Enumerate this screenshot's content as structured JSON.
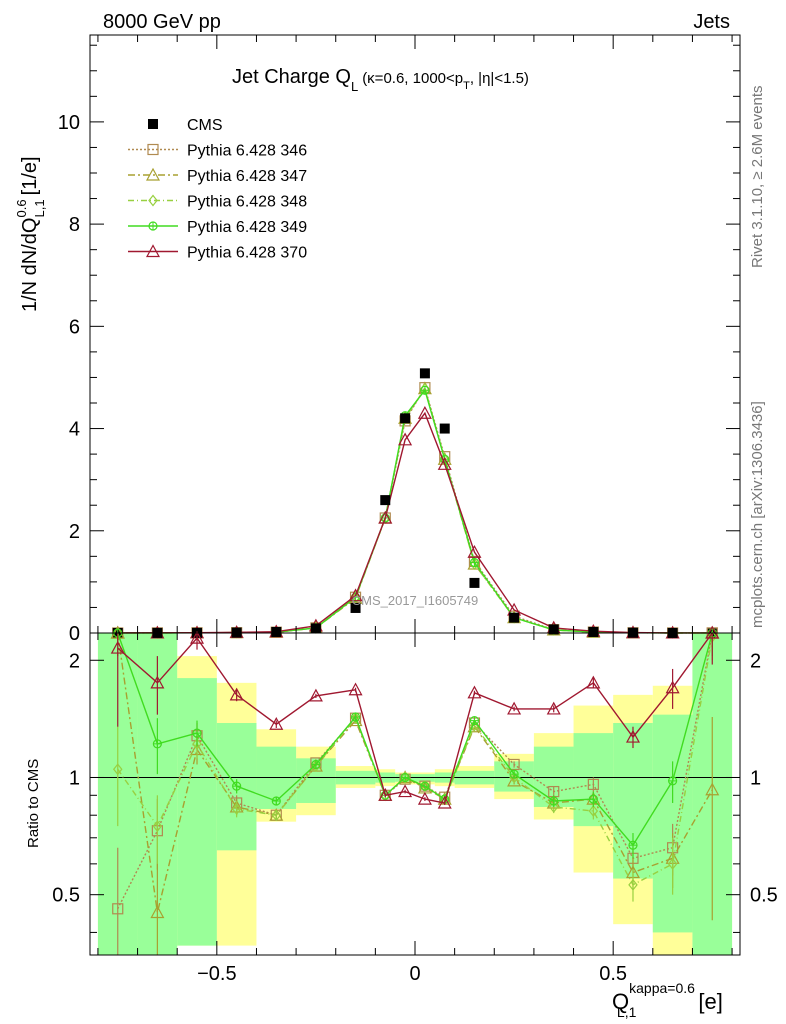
{
  "header": {
    "left": "8000 GeV pp",
    "right": "Jets"
  },
  "side_labels": {
    "top": "Rivet 3.1.10, ≥ 2.6M events",
    "bottom": "mcplots.cern.ch [arXiv:1306.3436]"
  },
  "watermark": "CMS_2017_I1605749",
  "chart_data": {
    "type": "line",
    "title_main": "Jet Charge Q",
    "title_sub": "L",
    "title_rest": "(κ=0.6, 1000<p",
    "title_sub2": "T",
    "title_end": ", |η|<1.5)",
    "ylabel": "1/N dN/dQ",
    "ylabel_sup": "0.6",
    "ylabel_sub": "L,1",
    "ylabel_unit": "[1/e]",
    "ratio_ylabel": "Ratio to CMS",
    "xlabel_main": "Q",
    "xlabel_sup": "kappa=0.6",
    "xlabel_sub": "L,1",
    "xlabel_unit": "[e]",
    "xlim": [
      -0.82,
      0.82
    ],
    "ylim_main": [
      0,
      11.7
    ],
    "ylim_ratio": "log 0.35 to 2.35",
    "x_ticks": [
      {
        "v": -0.5,
        "label": "−0.5"
      },
      {
        "v": 0,
        "label": "0"
      },
      {
        "v": 0.5,
        "label": "0.5"
      }
    ],
    "y_ticks_main": [
      {
        "v": 0,
        "label": "0"
      },
      {
        "v": 2,
        "label": "2"
      },
      {
        "v": 4,
        "label": "4"
      },
      {
        "v": 6,
        "label": "6"
      },
      {
        "v": 8,
        "label": "8"
      },
      {
        "v": 10,
        "label": "10"
      }
    ],
    "y_ticks_ratio": [
      {
        "v": 0.5,
        "label": "0.5"
      },
      {
        "v": 1,
        "label": "1"
      },
      {
        "v": 2,
        "label": "2"
      }
    ],
    "data": {
      "name": "CMS",
      "x": [
        -0.75,
        -0.65,
        -0.55,
        -0.45,
        -0.35,
        -0.25,
        -0.15,
        -0.075,
        -0.025,
        0.025,
        0.075,
        0.15,
        0.25,
        0.35,
        0.45,
        0.55,
        0.65,
        0.75
      ],
      "y": [
        0.0005,
        0.002,
        0.003,
        0.008,
        0.02,
        0.09,
        0.49,
        2.6,
        4.2,
        5.08,
        4.0,
        0.98,
        0.3,
        0.07,
        0.02,
        0.006,
        0.001,
        0.0003
      ]
    },
    "bands": [
      {
        "x0": -0.8,
        "x1": -0.7,
        "y_lo": 0.35,
        "y_hi": 2.35,
        "g_lo": 0.35,
        "g_hi": 2.35
      },
      {
        "x0": -0.7,
        "x1": -0.6,
        "y_lo": 0.35,
        "y_hi": 2.35,
        "g_lo": 0.35,
        "g_hi": 2.35
      },
      {
        "x0": -0.6,
        "x1": -0.5,
        "y_lo": 0.37,
        "y_hi": 2.05,
        "g_lo": 0.37,
        "g_hi": 1.8
      },
      {
        "x0": -0.5,
        "x1": -0.4,
        "y_lo": 0.37,
        "y_hi": 1.75,
        "g_lo": 0.65,
        "g_hi": 1.38
      },
      {
        "x0": -0.4,
        "x1": -0.3,
        "y_lo": 0.77,
        "y_hi": 1.33,
        "g_lo": 0.83,
        "g_hi": 1.2
      },
      {
        "x0": -0.3,
        "x1": -0.2,
        "y_lo": 0.8,
        "y_hi": 1.2,
        "g_lo": 0.86,
        "g_hi": 1.12
      },
      {
        "x0": -0.2,
        "x1": -0.1,
        "y_lo": 0.94,
        "y_hi": 1.07,
        "g_lo": 0.96,
        "g_hi": 1.04
      },
      {
        "x0": -0.1,
        "x1": -0.05,
        "y_lo": 0.95,
        "y_hi": 1.05,
        "g_lo": 0.97,
        "g_hi": 1.03
      },
      {
        "x0": -0.05,
        "x1": 0.0,
        "y_lo": 0.96,
        "y_hi": 1.03,
        "g_lo": 0.975,
        "g_hi": 1.02
      },
      {
        "x0": 0.0,
        "x1": 0.05,
        "y_lo": 0.96,
        "y_hi": 1.03,
        "g_lo": 0.975,
        "g_hi": 1.02
      },
      {
        "x0": 0.05,
        "x1": 0.1,
        "y_lo": 0.95,
        "y_hi": 1.05,
        "g_lo": 0.97,
        "g_hi": 1.03
      },
      {
        "x0": 0.1,
        "x1": 0.2,
        "y_lo": 0.94,
        "y_hi": 1.07,
        "g_lo": 0.96,
        "g_hi": 1.04
      },
      {
        "x0": 0.2,
        "x1": 0.3,
        "y_lo": 0.88,
        "y_hi": 1.15,
        "g_lo": 0.92,
        "g_hi": 1.1
      },
      {
        "x0": 0.3,
        "x1": 0.4,
        "y_lo": 0.78,
        "y_hi": 1.3,
        "g_lo": 0.84,
        "g_hi": 1.2
      },
      {
        "x0": 0.4,
        "x1": 0.5,
        "y_lo": 0.57,
        "y_hi": 1.53,
        "g_lo": 0.75,
        "g_hi": 1.3
      },
      {
        "x0": 0.5,
        "x1": 0.6,
        "y_lo": 0.42,
        "y_hi": 1.63,
        "g_lo": 0.55,
        "g_hi": 1.38
      },
      {
        "x0": 0.6,
        "x1": 0.7,
        "y_lo": 0.35,
        "y_hi": 1.72,
        "g_lo": 0.4,
        "g_hi": 1.45
      },
      {
        "x0": 0.7,
        "x1": 0.8,
        "y_lo": 0.35,
        "y_hi": 2.35,
        "g_lo": 0.35,
        "g_hi": 2.35
      }
    ],
    "series": [
      {
        "name": "Pythia 6.428 346",
        "color": "#b08a50",
        "dash": "2,2",
        "marker": "square",
        "y": [
          0.0005,
          0.002,
          0.004,
          0.007,
          0.016,
          0.1,
          0.7,
          2.25,
          4.15,
          4.8,
          3.45,
          1.4,
          0.33,
          0.065,
          0.019,
          0.004,
          0.001,
          0.001
        ],
        "ratio": [
          0.46,
          0.73,
          1.28,
          0.86,
          0.8,
          1.09,
          1.42,
          0.9,
          0.99,
          0.95,
          0.89,
          1.38,
          1.08,
          0.92,
          0.96,
          0.62,
          0.66,
          2.4
        ],
        "ratio_err": [
          0.2,
          0.15,
          0.1,
          0.04,
          0.02,
          0.02,
          0.02,
          0.01,
          0.01,
          0.01,
          0.01,
          0.02,
          0.02,
          0.03,
          0.04,
          0.05,
          0.1,
          0.3
        ]
      },
      {
        "name": "Pythia 6.428 347",
        "color": "#a8a030",
        "dash": "7,3,2,3",
        "marker": "triangle",
        "y": [
          0.0005,
          0.002,
          0.004,
          0.007,
          0.016,
          0.1,
          0.68,
          2.25,
          4.2,
          4.78,
          3.4,
          1.35,
          0.3,
          0.06,
          0.017,
          0.004,
          0.001,
          0.0003
        ],
        "ratio": [
          2.35,
          0.45,
          1.18,
          0.84,
          0.8,
          1.07,
          1.4,
          0.9,
          1.0,
          0.94,
          0.88,
          1.35,
          0.98,
          0.86,
          0.88,
          0.57,
          0.62,
          0.93
        ],
        "ratio_err": [
          0.3,
          0.15,
          0.1,
          0.04,
          0.02,
          0.02,
          0.02,
          0.01,
          0.01,
          0.01,
          0.01,
          0.02,
          0.02,
          0.03,
          0.04,
          0.05,
          0.1,
          0.5
        ]
      },
      {
        "name": "Pythia 6.428 348",
        "color": "#98d040",
        "dash": "6,3,1,3",
        "marker": "diamond",
        "y": [
          0.0005,
          0.002,
          0.004,
          0.007,
          0.016,
          0.1,
          0.7,
          2.25,
          4.2,
          4.78,
          3.4,
          1.35,
          0.3,
          0.06,
          0.016,
          0.003,
          0.0008,
          0.0005
        ],
        "ratio": [
          1.05,
          0.75,
          1.22,
          0.83,
          0.8,
          1.07,
          1.42,
          0.9,
          1.0,
          0.95,
          0.88,
          1.36,
          1.0,
          0.84,
          0.82,
          0.53,
          0.6,
          2.3
        ],
        "ratio_err": [
          0.3,
          0.15,
          0.1,
          0.04,
          0.02,
          0.02,
          0.02,
          0.01,
          0.01,
          0.01,
          0.01,
          0.02,
          0.02,
          0.03,
          0.04,
          0.05,
          0.1,
          0.3
        ]
      },
      {
        "name": "Pythia 6.428 349",
        "color": "#40dc20",
        "dash": "",
        "marker": "crosscircle",
        "y": [
          0.0005,
          0.002,
          0.004,
          0.008,
          0.017,
          0.1,
          0.7,
          2.25,
          4.25,
          4.75,
          3.4,
          1.38,
          0.3,
          0.06,
          0.017,
          0.004,
          0.001,
          0.001
        ],
        "ratio": [
          2.35,
          1.22,
          1.3,
          0.95,
          0.87,
          1.08,
          1.43,
          0.9,
          1.0,
          0.95,
          0.88,
          1.4,
          1.02,
          0.87,
          0.88,
          0.67,
          0.98,
          2.35
        ],
        "ratio_err": [
          0.3,
          0.2,
          0.1,
          0.04,
          0.02,
          0.02,
          0.02,
          0.01,
          0.01,
          0.01,
          0.01,
          0.02,
          0.02,
          0.03,
          0.04,
          0.05,
          0.12,
          0.3
        ]
      },
      {
        "name": "Pythia 6.428 370",
        "color": "#a01830",
        "dash": "",
        "marker": "triangle",
        "y": [
          0.001,
          0.003,
          0.006,
          0.013,
          0.025,
          0.14,
          0.73,
          2.25,
          3.78,
          4.3,
          3.3,
          1.58,
          0.45,
          0.1,
          0.035,
          0.008,
          0.002,
          0.001
        ],
        "ratio": [
          2.15,
          1.75,
          2.28,
          1.63,
          1.37,
          1.62,
          1.68,
          0.9,
          0.92,
          0.88,
          0.86,
          1.65,
          1.5,
          1.5,
          1.75,
          1.27,
          1.7,
          2.35
        ],
        "ratio_err": [
          0.8,
          0.3,
          0.15,
          0.06,
          0.03,
          0.02,
          0.02,
          0.01,
          0.01,
          0.01,
          0.01,
          0.02,
          0.02,
          0.03,
          0.05,
          0.08,
          0.2,
          0.4
        ]
      }
    ]
  }
}
